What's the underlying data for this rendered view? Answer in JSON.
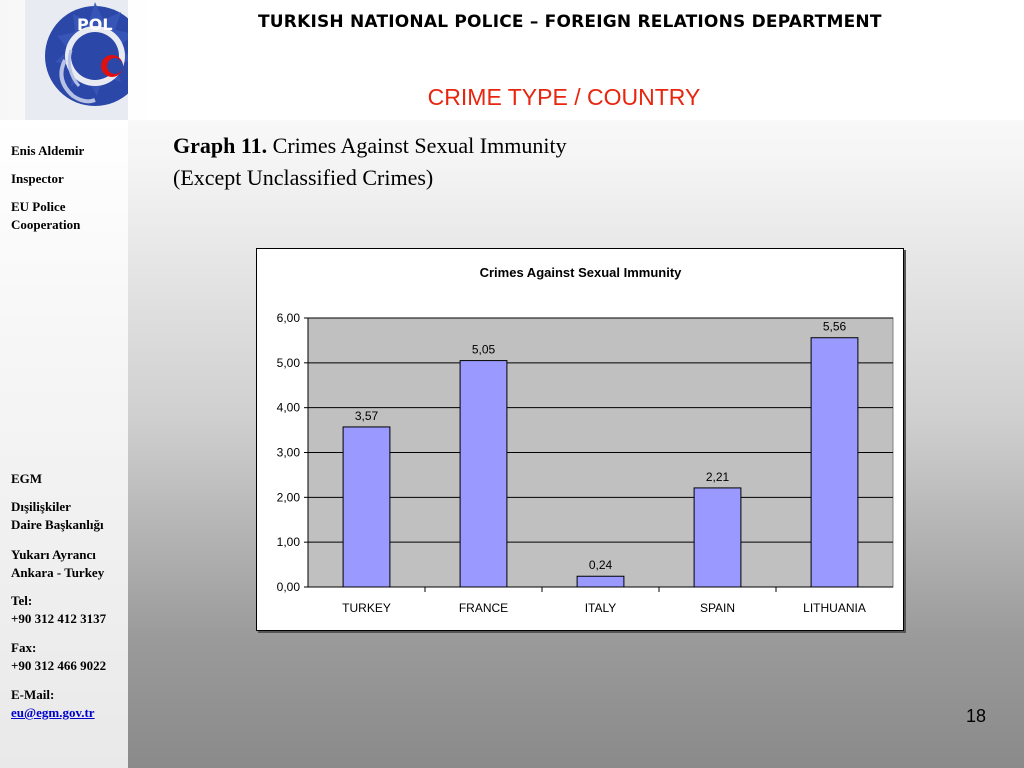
{
  "header": {
    "department_title": "TURKISH NATIONAL POLICE – FOREIGN RELATIONS DEPARTMENT",
    "slide_title": "CRIME TYPE / COUNTRY",
    "logo_text": "POLIS"
  },
  "sidebar": {
    "name": "Enis Aldemir",
    "role": "Inspector",
    "unit_line1": "EU Police",
    "unit_line2": "Cooperation",
    "org": "EGM",
    "dept_line1": "Dışilişkiler",
    "dept_line2": "Daire Başkanlığı",
    "address_line1": "Yukarı Ayrancı",
    "address_line2": "Ankara - Turkey",
    "tel_label": "Tel:",
    "tel_value": "+90 312 412 3137",
    "fax_label": "Fax:",
    "fax_value": "+90 312 466 9022",
    "email_label": "E-Mail:",
    "email_value": "eu@egm.gov.tr"
  },
  "caption": {
    "bold": "Graph 11.",
    "line1": "Crimes Against Sexual Immunity",
    "line2": "(Except Unclassified Crimes)"
  },
  "page_number": "18",
  "colors": {
    "bar_fill": "#9999ff",
    "plot_background": "#c0c0c0",
    "title_red": "#e8250e"
  },
  "chart_data": {
    "type": "bar",
    "title": "Crimes Against Sexual Immunity",
    "categories": [
      "TURKEY",
      "FRANCE",
      "ITALY",
      "SPAIN",
      "LITHUANIA"
    ],
    "values": [
      3.57,
      5.05,
      0.24,
      2.21,
      5.56
    ],
    "value_labels": [
      "3,57",
      "5,05",
      "0,24",
      "2,21",
      "5,56"
    ],
    "ylim": [
      0,
      6
    ],
    "yticks": [
      "0,00",
      "1,00",
      "2,00",
      "3,00",
      "4,00",
      "5,00",
      "6,00"
    ],
    "grid": true,
    "legend": "none"
  }
}
